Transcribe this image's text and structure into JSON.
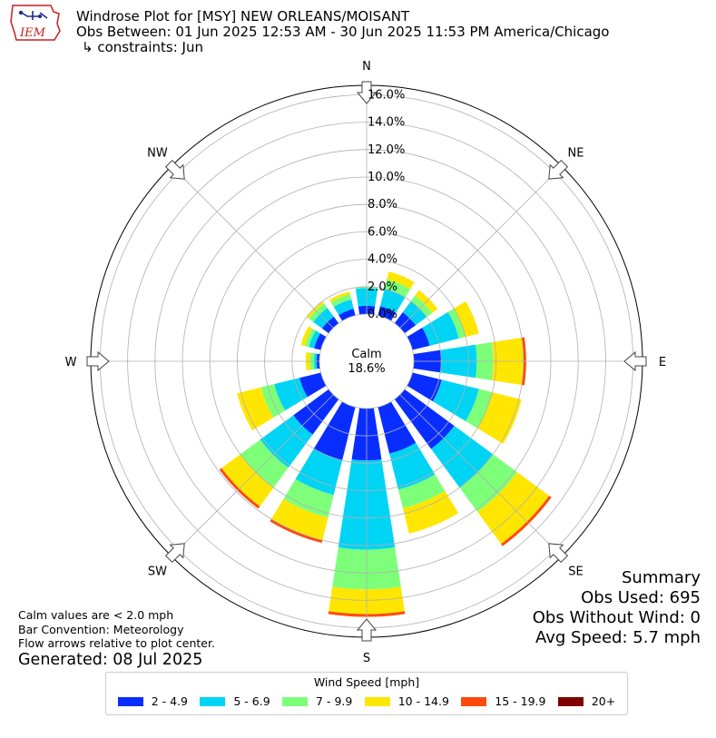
{
  "logo": {
    "text": "IEM"
  },
  "header": {
    "title": "Windrose Plot for [MSY] NEW ORLEANS/MOISANT",
    "subtitle": "Obs Between: 01 Jun 2025 12:53 AM - 30 Jun 2025 11:53 PM America/Chicago",
    "constraints": "↳ constraints: Jun"
  },
  "notes": {
    "calm_note": "Calm values are < 2.0 mph",
    "bar_convention": "Bar Convention: Meteorology",
    "flow_note": "Flow arrows relative to plot center.",
    "generated": "Generated: 08 Jul 2025"
  },
  "summary": {
    "title": "Summary",
    "obs_used": "Obs Used: 695",
    "obs_without_wind": "Obs Without Wind: 0",
    "avg_speed": "Avg Speed: 5.7 mph"
  },
  "legend": {
    "title": "Wind Speed [mph]",
    "items": [
      {
        "label": "2 - 4.9",
        "color": "#0a2dff"
      },
      {
        "label": "5 - 6.9",
        "color": "#00d4f5"
      },
      {
        "label": "7 - 9.9",
        "color": "#7dff7a"
      },
      {
        "label": "10 - 14.9",
        "color": "#ffe600"
      },
      {
        "label": "15 - 19.9",
        "color": "#ff4a0d"
      },
      {
        "label": "20+",
        "color": "#7f0000"
      }
    ]
  },
  "chart_data": {
    "type": "windrose",
    "calm": {
      "label": "Calm",
      "value": "18.6%"
    },
    "radial_ticks": [
      "0.0%",
      "2.0%",
      "4.0%",
      "6.0%",
      "8.0%",
      "10.0%",
      "12.0%",
      "14.0%",
      "16.0%"
    ],
    "radial_range": [
      0,
      16
    ],
    "compass_labels": [
      "N",
      "NE",
      "E",
      "SE",
      "S",
      "SW",
      "W",
      "NW"
    ],
    "bin_count": 16,
    "bin_width_deg": 22.5,
    "direction_bins": [
      "N",
      "NNE",
      "NE",
      "ENE",
      "E",
      "ESE",
      "SE",
      "SSE",
      "S",
      "SSW",
      "SW",
      "WSW",
      "W",
      "WNW",
      "NW",
      "NNW"
    ],
    "speed_bins": [
      "2 - 4.9",
      "5 - 6.9",
      "7 - 9.9",
      "10 - 14.9",
      "15 - 19.9",
      "20+"
    ],
    "cumulative_percent": [
      [
        0.6,
        1.9,
        2.0,
        2.0,
        2.0,
        2.0
      ],
      [
        0.7,
        2.0,
        2.7,
        3.3,
        3.3,
        3.3
      ],
      [
        1.0,
        2.0,
        2.5,
        3.0,
        3.0,
        3.0
      ],
      [
        1.3,
        3.5,
        4.0,
        5.0,
        5.0,
        5.0
      ],
      [
        2.0,
        4.6,
        5.8,
        8.0,
        8.2,
        8.2
      ],
      [
        2.2,
        5.0,
        6.0,
        8.2,
        8.2,
        8.2
      ],
      [
        4.5,
        8.0,
        10.2,
        13.1,
        13.3,
        13.3
      ],
      [
        3.5,
        6.2,
        7.6,
        9.5,
        9.5,
        9.5
      ],
      [
        3.8,
        10.3,
        13.2,
        15.0,
        15.2,
        15.2
      ],
      [
        4.0,
        6.6,
        8.3,
        10.0,
        10.2,
        10.2
      ],
      [
        3.2,
        6.2,
        8.0,
        9.7,
        9.9,
        9.9
      ],
      [
        1.6,
        3.5,
        4.5,
        6.3,
        6.3,
        6.3
      ],
      [
        0.2,
        0.4,
        0.7,
        1.0,
        1.0,
        1.0
      ],
      [
        0.5,
        0.9,
        1.2,
        1.5,
        1.5,
        1.5
      ],
      [
        0.6,
        1.4,
        1.8,
        2.0,
        2.0,
        2.0
      ],
      [
        0.5,
        1.2,
        1.6,
        1.8,
        1.8,
        1.8
      ]
    ],
    "grid": true,
    "legend_position": "bottom"
  }
}
